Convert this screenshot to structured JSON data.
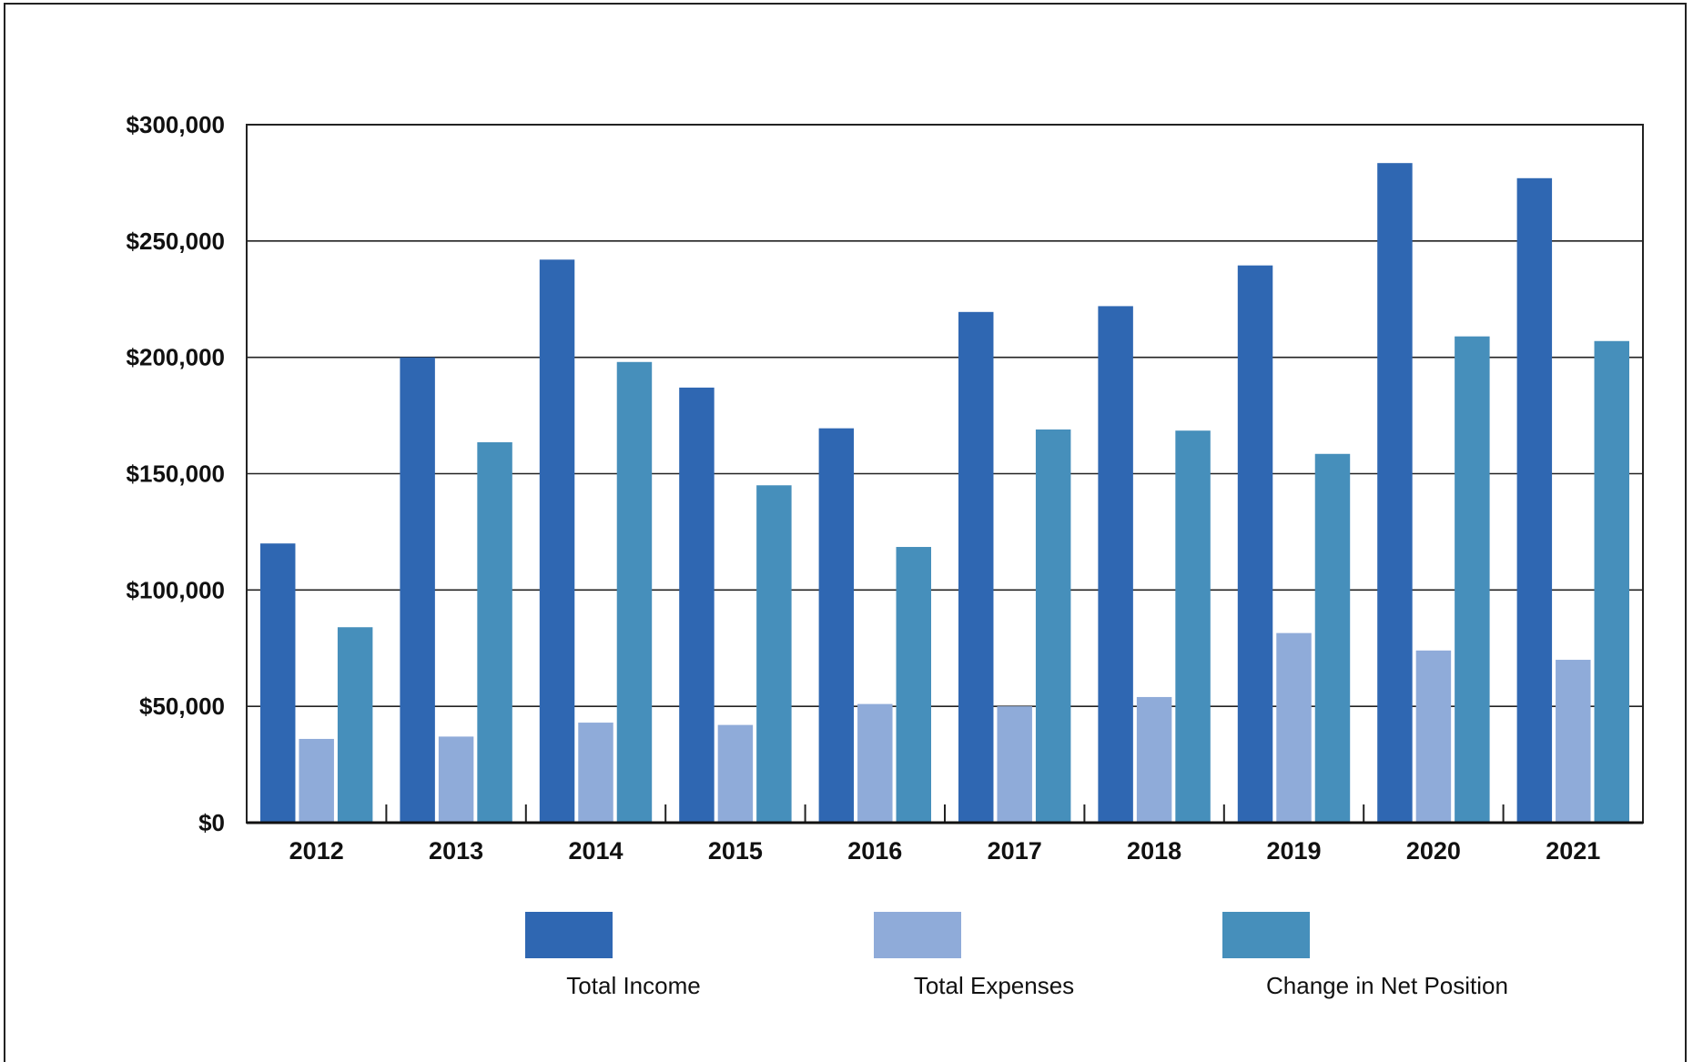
{
  "chart_data": {
    "type": "bar",
    "categories": [
      "2012",
      "2013",
      "2014",
      "2015",
      "2016",
      "2017",
      "2018",
      "2019",
      "2020",
      "2021"
    ],
    "series": [
      {
        "name": "Total Income",
        "color": "#2f67b2",
        "values": [
          120000,
          200000,
          242000,
          187000,
          169500,
          219500,
          222000,
          239500,
          283500,
          277000
        ]
      },
      {
        "name": "Total Expenses",
        "color": "#8fabd9",
        "values": [
          36000,
          37000,
          43000,
          42000,
          51000,
          50000,
          54000,
          81500,
          74000,
          70000
        ]
      },
      {
        "name": "Change in Net Position",
        "color": "#468fbb",
        "values": [
          84000,
          163500,
          198000,
          145000,
          118500,
          169000,
          168500,
          158500,
          209000,
          207000
        ]
      }
    ],
    "y_ticks": [
      "$0",
      "$50,000",
      "$100,000",
      "$150,000",
      "$200,000",
      "$250,000",
      "$300,000"
    ],
    "y_tick_values": [
      0,
      50000,
      100000,
      150000,
      200000,
      250000,
      300000
    ],
    "ylim": [
      0,
      300000
    ],
    "grid": true,
    "legend_position": "bottom"
  }
}
